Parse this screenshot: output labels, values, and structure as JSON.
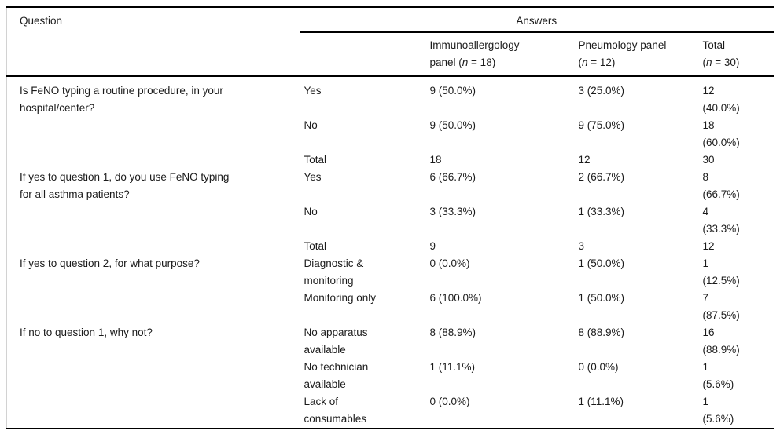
{
  "table": {
    "header": {
      "question": "Question",
      "answers": "Answers",
      "columns": [
        {
          "line1": [
            {
              "t": "Immunoallergology"
            }
          ],
          "line2": [
            {
              "t": "panel ("
            },
            {
              "t": "n",
              "i": true
            },
            {
              "t": " = 18)"
            }
          ]
        },
        {
          "line1": [
            {
              "t": "Pneumology panel"
            }
          ],
          "line2": [
            {
              "t": "("
            },
            {
              "t": "n",
              "i": true
            },
            {
              "t": " = 12)"
            }
          ]
        },
        {
          "line1": [
            {
              "t": "Total"
            }
          ],
          "line2": [
            {
              "t": "("
            },
            {
              "t": "n",
              "i": true
            },
            {
              "t": " = 30)"
            }
          ]
        }
      ]
    },
    "groups": [
      {
        "question": "Is FeNO typing a routine procedure, in your\nhospital/center?",
        "rows": [
          {
            "option": "Yes",
            "immuno": "9 (50.0%)",
            "pneumo": "3 (25.0%)",
            "total": "12\n(40.0%)"
          },
          {
            "option": "No",
            "immuno": "9 (50.0%)",
            "pneumo": "9 (75.0%)",
            "total": "18\n(60.0%)"
          },
          {
            "option": "Total",
            "immuno": "18",
            "pneumo": "12",
            "total": "30"
          }
        ]
      },
      {
        "question": "If yes to question 1, do you use FeNO typing\nfor all asthma patients?",
        "rows": [
          {
            "option": "Yes",
            "immuno": "6 (66.7%)",
            "pneumo": "2 (66.7%)",
            "total": "8\n(66.7%)"
          },
          {
            "option": "No",
            "immuno": "3 (33.3%)",
            "pneumo": "1 (33.3%)",
            "total": "4\n(33.3%)"
          },
          {
            "option": "Total",
            "immuno": "9",
            "pneumo": "3",
            "total": "12"
          }
        ]
      },
      {
        "question": "If yes to question 2, for what purpose?",
        "rows": [
          {
            "option": "Diagnostic &\nmonitoring",
            "immuno": "0 (0.0%)",
            "pneumo": "1 (50.0%)",
            "total": "1\n(12.5%)"
          },
          {
            "option": "Monitoring only",
            "immuno": "6 (100.0%)",
            "pneumo": "1 (50.0%)",
            "total": "7\n(87.5%)"
          }
        ]
      },
      {
        "question": "If no to question 1, why not?",
        "rows": [
          {
            "option": "No apparatus\navailable",
            "immuno": "8 (88.9%)",
            "pneumo": "8 (88.9%)",
            "total": "16\n(88.9%)"
          },
          {
            "option": "No technician\navailable",
            "immuno": "1 (11.1%)",
            "pneumo": "0 (0.0%)",
            "total": "1\n(5.6%)"
          },
          {
            "option": "Lack of\nconsumables",
            "immuno": "0 (0.0%)",
            "pneumo": "1 (11.1%)",
            "total": "1\n(5.6%)"
          }
        ]
      }
    ]
  }
}
